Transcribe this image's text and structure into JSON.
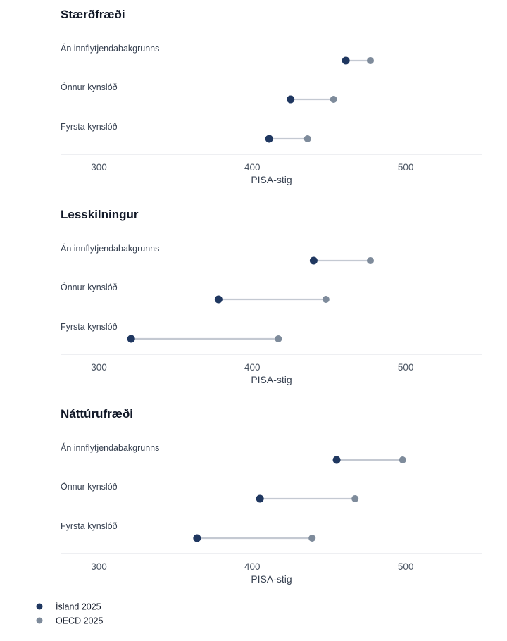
{
  "colors": {
    "iceland": "#1f3760",
    "oecd": "#7e8b9b",
    "connector": "#c4c9d2",
    "axis": "#dcdfe4"
  },
  "legend": {
    "items": [
      {
        "label": "Ísland 2025",
        "color": "#1f3760"
      },
      {
        "label": "OECD 2025",
        "color": "#7e8b9b"
      }
    ]
  },
  "chart_data": [
    {
      "type": "dumbbell",
      "title": "Stærðfræði",
      "xlabel": "PISA-stig",
      "xlim": [
        275,
        550
      ],
      "xticks": [
        300,
        400,
        500
      ],
      "categories": [
        "Án innflytjendabakgrunns",
        "Önnur kynslóð",
        "Fyrsta kynslóð"
      ],
      "series": [
        {
          "name": "Ísland 2025",
          "values": [
            461,
            425,
            411
          ]
        },
        {
          "name": "OECD 2025",
          "values": [
            477,
            453,
            436
          ]
        }
      ]
    },
    {
      "type": "dumbbell",
      "title": "Lesskilningur",
      "xlabel": "PISA-stig",
      "xlim": [
        275,
        550
      ],
      "xticks": [
        300,
        400,
        500
      ],
      "categories": [
        "Án innflytjendabakgrunns",
        "Önnur kynslóð",
        "Fyrsta kynslóð"
      ],
      "series": [
        {
          "name": "Ísland 2025",
          "values": [
            440,
            378,
            321
          ]
        },
        {
          "name": "OECD 2025",
          "values": [
            477,
            448,
            417
          ]
        }
      ]
    },
    {
      "type": "dumbbell",
      "title": "Náttúrufræði",
      "xlabel": "PISA-stig",
      "xlim": [
        275,
        550
      ],
      "xticks": [
        300,
        400,
        500
      ],
      "categories": [
        "Án innflytjendabakgrunns",
        "Önnur kynslóð",
        "Fyrsta kynslóð"
      ],
      "series": [
        {
          "name": "Ísland 2025",
          "values": [
            455,
            405,
            364
          ]
        },
        {
          "name": "OECD 2025",
          "values": [
            498,
            467,
            439
          ]
        }
      ]
    }
  ]
}
